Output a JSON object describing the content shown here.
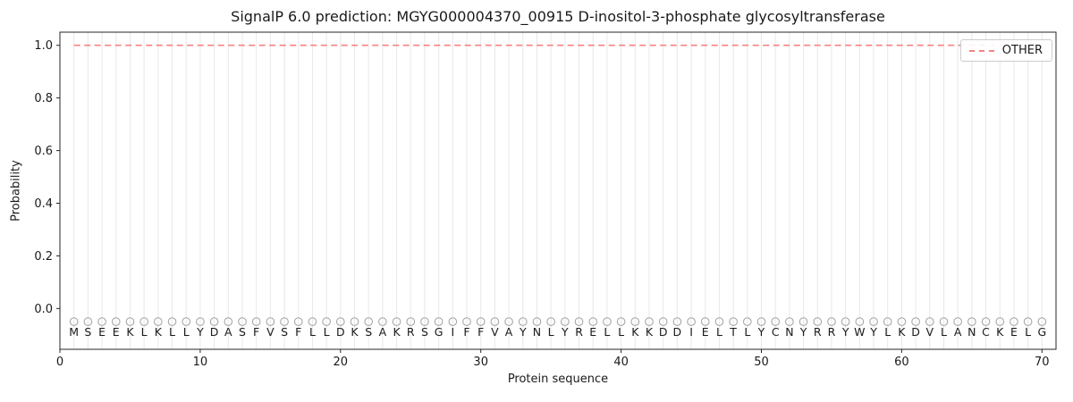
{
  "chart_data": {
    "type": "line",
    "title": "SignalP 6.0 prediction: MGYG000004370_00915 D-inositol-3-phosphate glycosyltransferase",
    "xlabel": "Protein sequence",
    "ylabel": "Probability",
    "xlim": [
      0,
      71
    ],
    "ylim": [
      -0.155,
      1.05
    ],
    "xticks": [
      0,
      10,
      20,
      30,
      40,
      50,
      60,
      70
    ],
    "xtick_labels": [
      "0",
      "10",
      "20",
      "30",
      "40",
      "50",
      "60",
      "70"
    ],
    "yticks": [
      0.0,
      0.2,
      0.4,
      0.6,
      0.8,
      1.0
    ],
    "ytick_labels": [
      "0.0",
      "0.2",
      "0.4",
      "0.6",
      "0.8",
      "1.0"
    ],
    "grid": "vertical-line-per-residue",
    "sequence": "MSEEKLKLLYDASFVSFLLDKSAKRSGIFFVAYNLYRELLKKDDIELTLYCNYRRYWYLKDVLANCKELG",
    "series": [
      {
        "name": "OTHER",
        "color": "#f98080",
        "linestyle": "dashed",
        "x_start": 1,
        "values": [
          1,
          1,
          1,
          1,
          1,
          1,
          1,
          1,
          1,
          1,
          1,
          1,
          1,
          1,
          1,
          1,
          1,
          1,
          1,
          1,
          1,
          1,
          1,
          1,
          1,
          1,
          1,
          1,
          1,
          1,
          1,
          1,
          1,
          1,
          1,
          1,
          1,
          1,
          1,
          1,
          1,
          1,
          1,
          1,
          1,
          1,
          1,
          1,
          1,
          1,
          1,
          1,
          1,
          1,
          1,
          1,
          1,
          1,
          1,
          1,
          1,
          1,
          1,
          1,
          1,
          1,
          1,
          1,
          1,
          1
        ]
      }
    ],
    "marker_row": {
      "y": -0.05,
      "shape": "open-circle",
      "color": "#a0a0a0"
    },
    "legend": {
      "position": "upper-right",
      "entries": [
        {
          "label": "OTHER",
          "color": "#f98080",
          "linestyle": "dashed"
        }
      ]
    },
    "colors": {
      "grid": "#e8e8e8",
      "axis": "#262626",
      "text": "#1a1a1a"
    }
  }
}
